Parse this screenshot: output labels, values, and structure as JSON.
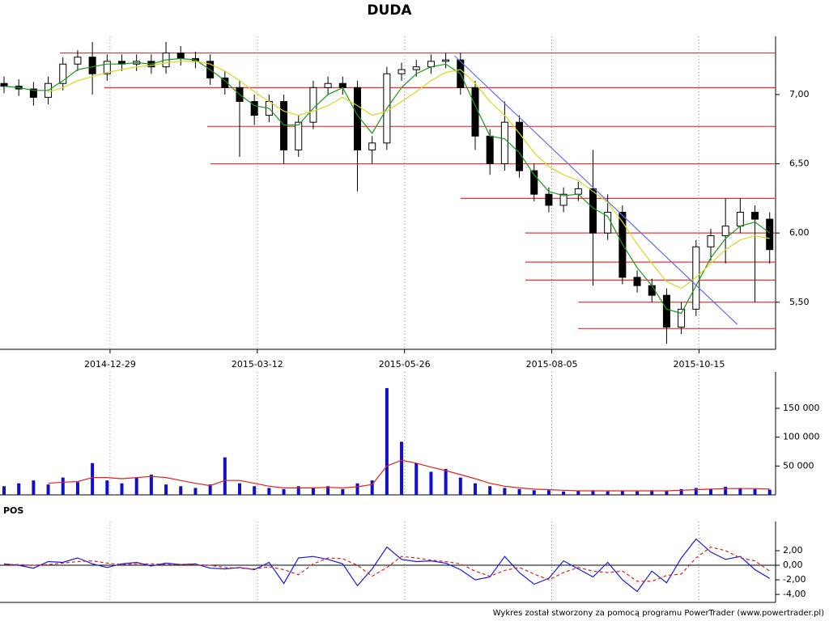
{
  "chart_data": [
    {
      "type": "candlestick",
      "title": "DUDA",
      "x": [
        0,
        5,
        10,
        15,
        20,
        25,
        30,
        35,
        40,
        45,
        50,
        55,
        60,
        65,
        70,
        75,
        80,
        85,
        90,
        95,
        100,
        105,
        110,
        115,
        120,
        125,
        130,
        135,
        140,
        145,
        150,
        155,
        160,
        165,
        170,
        175,
        180,
        185,
        190,
        195,
        200,
        205,
        210,
        215,
        220,
        225,
        230,
        235,
        240,
        245,
        250,
        255,
        260
      ],
      "open": [
        7.08,
        7.06,
        7.04,
        6.98,
        7.08,
        7.22,
        7.27,
        7.15,
        7.24,
        7.22,
        7.24,
        7.2,
        7.3,
        7.26,
        7.24,
        7.12,
        7.05,
        6.95,
        6.85,
        6.95,
        6.6,
        6.8,
        7.05,
        7.08,
        7.05,
        6.6,
        6.65,
        7.15,
        7.18,
        7.2,
        7.24,
        7.25,
        7.05,
        6.7,
        6.5,
        6.8,
        6.45,
        6.28,
        6.2,
        6.28,
        6.32,
        6.0,
        6.15,
        5.68,
        5.62,
        5.55,
        5.32,
        5.45,
        5.9,
        5.98,
        6.05,
        6.15,
        6.1
      ],
      "high": [
        7.13,
        7.11,
        7.09,
        7.13,
        7.27,
        7.32,
        7.38,
        7.29,
        7.29,
        7.29,
        7.29,
        7.38,
        7.35,
        7.31,
        7.29,
        7.17,
        7.1,
        7.0,
        7.0,
        7.0,
        6.85,
        7.1,
        7.13,
        7.13,
        7.1,
        6.7,
        7.2,
        7.23,
        7.25,
        7.29,
        7.3,
        7.3,
        7.1,
        6.75,
        6.95,
        6.85,
        6.5,
        6.33,
        6.33,
        6.37,
        6.6,
        6.28,
        6.2,
        5.73,
        5.67,
        5.6,
        5.5,
        5.95,
        6.03,
        6.25,
        6.25,
        6.2,
        6.15
      ],
      "low": [
        7.01,
        6.99,
        6.92,
        6.93,
        7.03,
        7.17,
        7.0,
        7.1,
        7.17,
        7.17,
        7.15,
        7.15,
        7.21,
        7.19,
        7.07,
        7.0,
        6.55,
        6.78,
        6.8,
        6.5,
        6.55,
        6.75,
        7.0,
        7.0,
        6.3,
        6.5,
        6.6,
        7.1,
        7.13,
        7.15,
        7.19,
        7.0,
        6.6,
        6.42,
        6.45,
        6.4,
        6.23,
        6.15,
        6.15,
        6.23,
        5.62,
        5.95,
        5.63,
        5.57,
        5.5,
        5.2,
        5.27,
        5.4,
        5.8,
        5.78,
        6.0,
        5.5,
        5.78
      ],
      "close": [
        7.06,
        7.04,
        6.98,
        7.08,
        7.22,
        7.27,
        7.15,
        7.24,
        7.22,
        7.24,
        7.2,
        7.3,
        7.26,
        7.24,
        7.12,
        7.05,
        6.95,
        6.85,
        6.95,
        6.6,
        6.8,
        7.05,
        7.08,
        7.05,
        6.6,
        6.65,
        7.15,
        7.18,
        7.2,
        7.24,
        7.25,
        7.05,
        6.7,
        6.5,
        6.8,
        6.45,
        6.28,
        6.2,
        6.28,
        6.32,
        6.0,
        6.15,
        5.68,
        5.62,
        5.55,
        5.32,
        5.45,
        5.9,
        5.98,
        6.05,
        6.15,
        6.1,
        5.88
      ],
      "series": [
        {
          "color": "#1a9a1a",
          "values": [
            7.06,
            7.05,
            7.03,
            7.03,
            7.1,
            7.18,
            7.2,
            7.22,
            7.22,
            7.23,
            7.22,
            7.25,
            7.26,
            7.25,
            7.18,
            7.1,
            7.0,
            6.92,
            6.9,
            6.78,
            6.78,
            6.9,
            7.0,
            7.05,
            6.85,
            6.72,
            6.9,
            7.05,
            7.15,
            7.2,
            7.22,
            7.15,
            6.92,
            6.7,
            6.68,
            6.58,
            6.42,
            6.3,
            6.27,
            6.28,
            6.18,
            6.12,
            5.92,
            5.75,
            5.62,
            5.45,
            5.42,
            5.62,
            5.82,
            5.96,
            6.05,
            6.08,
            6.0
          ]
        },
        {
          "color": "#d8d820",
          "values": [
            null,
            null,
            null,
            7.02,
            7.05,
            7.1,
            7.13,
            7.16,
            7.18,
            7.2,
            7.21,
            7.23,
            7.24,
            7.24,
            7.22,
            7.17,
            7.1,
            7.02,
            6.95,
            6.88,
            6.85,
            6.88,
            6.92,
            6.98,
            6.92,
            6.85,
            6.88,
            6.95,
            7.02,
            7.1,
            7.16,
            7.18,
            7.08,
            6.95,
            6.85,
            6.72,
            6.58,
            6.48,
            6.42,
            6.38,
            6.3,
            6.22,
            6.08,
            5.92,
            5.78,
            5.65,
            5.6,
            5.68,
            5.78,
            5.88,
            5.95,
            5.98,
            5.96
          ]
        }
      ],
      "levels": [
        {
          "value": 7.3,
          "start": 19
        },
        {
          "value": 7.05,
          "start": 34
        },
        {
          "value": 6.77,
          "start": 69
        },
        {
          "value": 6.5,
          "start": 70
        },
        {
          "value": 6.25,
          "start": 155
        },
        {
          "value": 6.0,
          "start": 177
        },
        {
          "value": 5.79,
          "start": 177
        },
        {
          "value": 5.66,
          "start": 177
        },
        {
          "value": 5.5,
          "start": 195
        },
        {
          "value": 5.31,
          "start": 195
        }
      ],
      "level_color": "#f03030",
      "trendline": {
        "x": [
          153,
          249
        ],
        "values": [
          7.28,
          5.34
        ],
        "color": "#6070e8"
      },
      "xlim": [
        0,
        262
      ],
      "xticks": [
        {
          "value": 36,
          "label": "2014-12-29"
        },
        {
          "value": 86,
          "label": "2015-03-12"
        },
        {
          "value": 136,
          "label": "2015-05-26"
        },
        {
          "value": 186,
          "label": "2015-08-05"
        },
        {
          "value": 236,
          "label": "2015-10-15"
        }
      ],
      "ylim": [
        5.16,
        7.42
      ],
      "yticks": [
        {
          "value": 5.5,
          "label": "5,50"
        },
        {
          "value": 6,
          "label": "6,00"
        },
        {
          "value": 6.5,
          "label": "6,50"
        },
        {
          "value": 7,
          "label": "7,00"
        }
      ],
      "grid": true
    },
    {
      "type": "bar",
      "x": [
        0,
        5,
        10,
        15,
        20,
        25,
        30,
        35,
        40,
        45,
        50,
        55,
        60,
        65,
        70,
        75,
        80,
        85,
        90,
        95,
        100,
        105,
        110,
        115,
        120,
        125,
        130,
        135,
        140,
        145,
        150,
        155,
        160,
        165,
        170,
        175,
        180,
        185,
        190,
        195,
        200,
        205,
        210,
        215,
        220,
        225,
        230,
        235,
        240,
        245,
        250,
        255,
        260
      ],
      "values": [
        15000,
        20000,
        25000,
        18000,
        30000,
        22000,
        55000,
        25000,
        20000,
        30000,
        35000,
        18000,
        15000,
        12000,
        18000,
        65000,
        20000,
        15000,
        12000,
        10000,
        15000,
        12000,
        15000,
        10000,
        20000,
        25000,
        185000,
        92000,
        55000,
        40000,
        45000,
        30000,
        20000,
        15000,
        12000,
        10000,
        8000,
        8000,
        6000,
        7000,
        8000,
        6000,
        7000,
        6000,
        8000,
        7000,
        10000,
        12000,
        10000,
        14000,
        12000,
        10000,
        9000
      ],
      "color": "#1010c8",
      "series": [
        {
          "color": "#e02020",
          "values": [
            null,
            null,
            null,
            20000,
            22000,
            23000,
            30000,
            30000,
            28000,
            30000,
            32000,
            30000,
            25000,
            20000,
            16000,
            25000,
            25000,
            20000,
            15000,
            12000,
            12000,
            12000,
            13000,
            12000,
            14000,
            18000,
            50000,
            60000,
            55000,
            48000,
            42000,
            35000,
            28000,
            20000,
            15000,
            12000,
            10000,
            9000,
            8000,
            7000,
            7000,
            7000,
            7000,
            7000,
            7000,
            7000,
            8000,
            9000,
            10000,
            11000,
            11000,
            11000,
            10000
          ]
        }
      ],
      "xlim": [
        0,
        262
      ],
      "ylim": [
        0,
        213000
      ],
      "yticks": [
        {
          "value": 50000,
          "label": "50 000"
        },
        {
          "value": 100000,
          "label": "100 000"
        },
        {
          "value": 150000,
          "label": "150 000"
        }
      ],
      "grid": true
    },
    {
      "type": "line",
      "title": "POS",
      "x": [
        0,
        5,
        10,
        15,
        20,
        25,
        30,
        35,
        40,
        45,
        50,
        55,
        60,
        65,
        70,
        75,
        80,
        85,
        90,
        95,
        100,
        105,
        110,
        115,
        120,
        125,
        130,
        135,
        140,
        145,
        150,
        155,
        160,
        165,
        170,
        175,
        180,
        185,
        190,
        195,
        200,
        205,
        210,
        215,
        220,
        225,
        230,
        235,
        240,
        245,
        250,
        255,
        260
      ],
      "series": [
        {
          "color": "#1818e0",
          "values": [
            0.2,
            0.0,
            -0.4,
            0.5,
            0.4,
            1.0,
            0.2,
            -0.3,
            0.2,
            0.4,
            -0.1,
            0.3,
            0.1,
            0.2,
            -0.4,
            -0.5,
            -0.3,
            -0.6,
            0.4,
            -2.5,
            1.0,
            1.2,
            0.8,
            0.2,
            -2.8,
            -0.5,
            2.5,
            0.8,
            0.5,
            0.6,
            0.3,
            -0.6,
            -2.0,
            -1.6,
            1.2,
            -1.0,
            -2.6,
            -1.8,
            0.6,
            -0.5,
            -1.6,
            0.4,
            -2.0,
            -3.6,
            -0.8,
            -2.4,
            1.0,
            3.6,
            1.8,
            0.8,
            1.2,
            -0.6,
            -1.8
          ]
        },
        {
          "color": "#e02020",
          "dashed": true,
          "values": [
            0.1,
            0.1,
            0.0,
            0.1,
            0.3,
            0.5,
            0.6,
            0.3,
            0.1,
            0.2,
            0.2,
            0.1,
            0.1,
            0.1,
            0.0,
            -0.3,
            -0.4,
            -0.5,
            -0.2,
            -0.6,
            -1.3,
            0.2,
            1.0,
            0.9,
            0.0,
            -1.5,
            -0.3,
            1.2,
            1.0,
            0.7,
            0.5,
            0.2,
            -0.8,
            -1.5,
            -0.7,
            -0.3,
            -1.2,
            -2.0,
            -1.0,
            -0.3,
            -0.8,
            -1.0,
            -0.8,
            -2.2,
            -2.2,
            -1.4,
            -1.2,
            1.0,
            2.5,
            2.0,
            1.0,
            0.6,
            -0.8
          ]
        }
      ],
      "xlim": [
        0,
        262
      ],
      "ylim": [
        -5.1,
        6
      ],
      "yticks": [
        {
          "value": -4,
          "label": "-4,00"
        },
        {
          "value": -2,
          "label": "-2,00"
        },
        {
          "value": 0,
          "label": "0,00"
        },
        {
          "value": 2,
          "label": "2,00"
        }
      ],
      "grid": true
    }
  ],
  "footer": "Wykres został stworzony za pomocą programu PowerTrader (www.powertrader.pl)"
}
